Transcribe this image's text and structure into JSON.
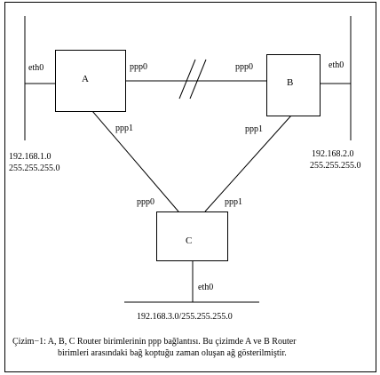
{
  "routers": {
    "a": {
      "name": "A"
    },
    "b": {
      "name": "B"
    },
    "c": {
      "name": "C"
    }
  },
  "interfaces": {
    "a_eth0": "eth0",
    "a_ppp0": "ppp0",
    "a_ppp1": "ppp1",
    "b_eth0": "eth0",
    "b_ppp0": "ppp0",
    "b_ppp1": "ppp1",
    "c_ppp0": "ppp0",
    "c_ppp1": "ppp1",
    "c_eth0": "eth0"
  },
  "networks": {
    "left": {
      "address": "192.168.1.0",
      "mask": "255.255.255.0"
    },
    "right": {
      "address": "192.168.2.0",
      "mask": "255.255.255.0"
    },
    "bottom": {
      "full": "192.168.3.0/255.255.255.0"
    }
  },
  "caption": {
    "line1": "Çizim−1: A, B, C Router birimlerinin ppp bağlantısı. Bu çizimde A ve B Router",
    "line2": "birimleri arasındaki bağ koptuğu zaman oluşan ağ gösterilmiştir."
  }
}
